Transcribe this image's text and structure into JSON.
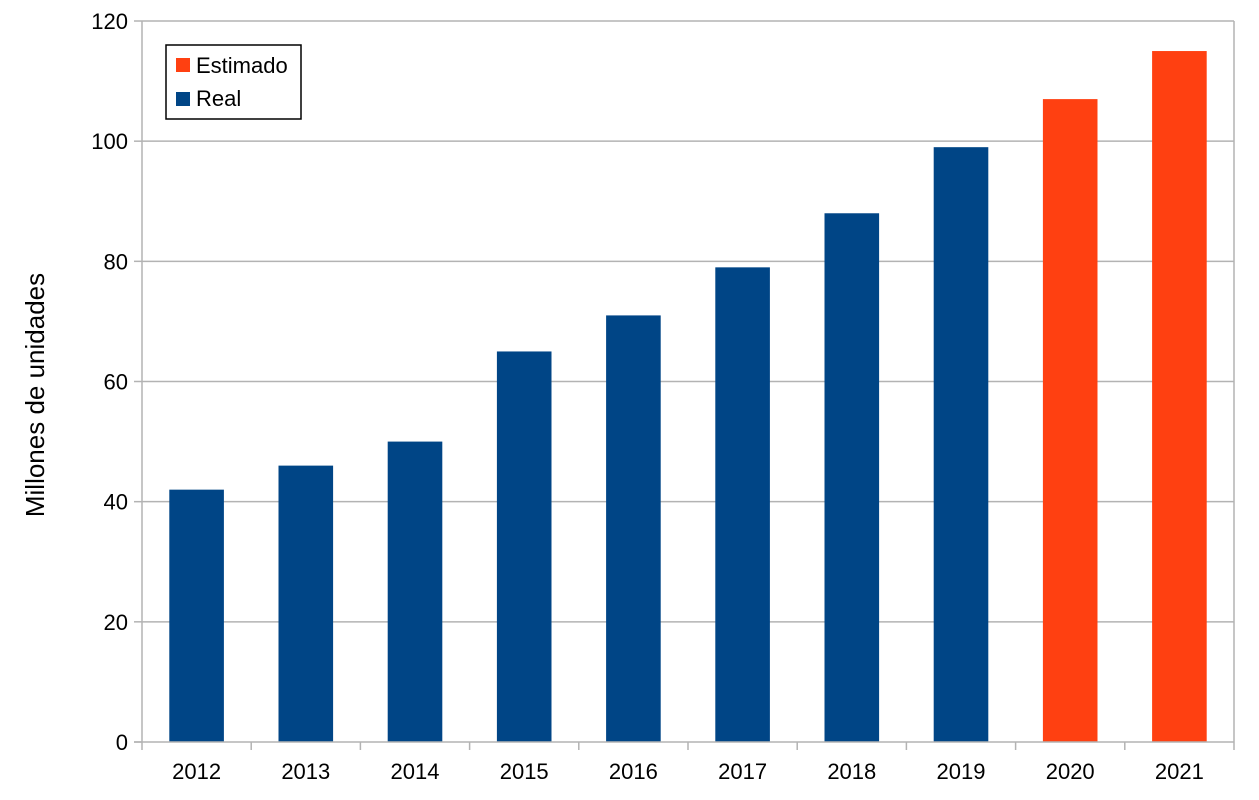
{
  "chart_data": {
    "type": "bar",
    "title": "",
    "xlabel": "",
    "ylabel": "Millones de unidades",
    "ylim": [
      0,
      120
    ],
    "yticks": [
      0,
      20,
      40,
      60,
      80,
      100,
      120
    ],
    "grid": true,
    "legend_position": "top-left",
    "categories": [
      "2012",
      "2013",
      "2014",
      "2015",
      "2016",
      "2017",
      "2018",
      "2019",
      "2020",
      "2021"
    ],
    "series": [
      {
        "name": "Estimado",
        "color": "#FF4011",
        "values": [
          null,
          null,
          null,
          null,
          null,
          null,
          null,
          null,
          107,
          115
        ]
      },
      {
        "name": "Real",
        "color": "#004586",
        "values": [
          42,
          46,
          50,
          65,
          71,
          79,
          88,
          99,
          null,
          null
        ]
      }
    ]
  }
}
